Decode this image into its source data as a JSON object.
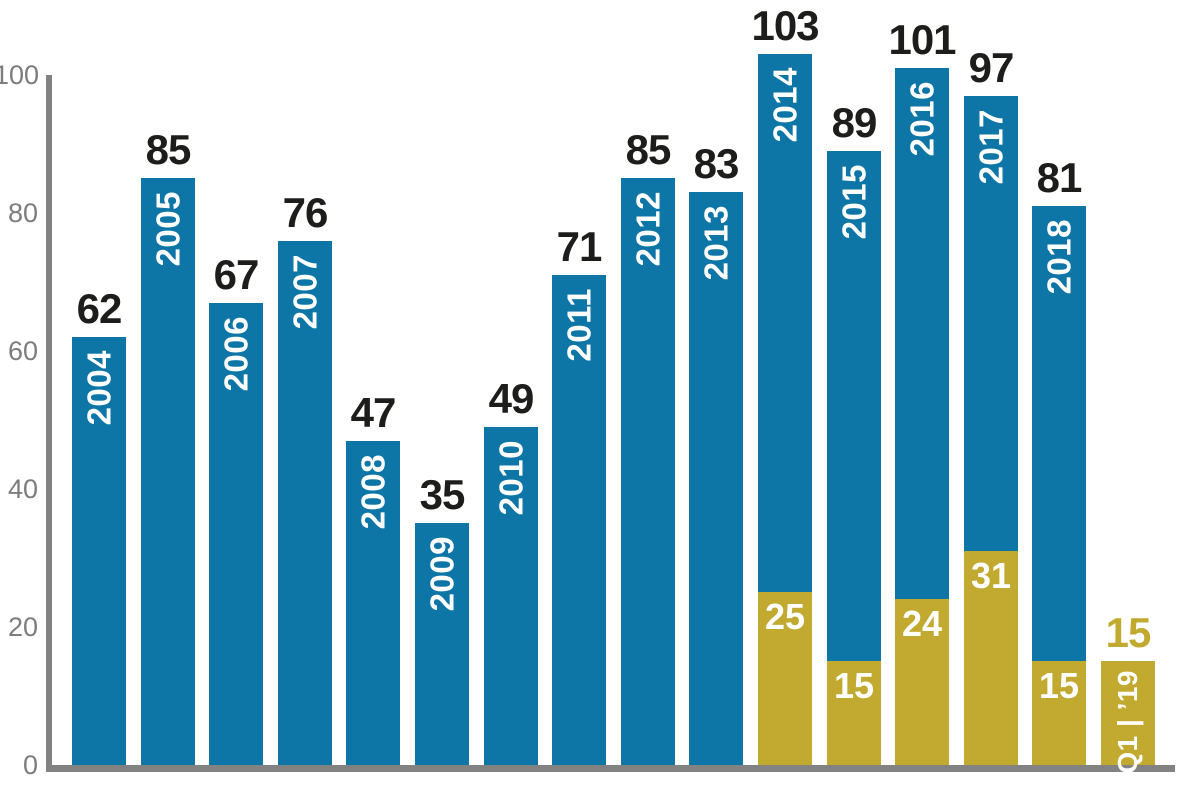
{
  "chart_data": {
    "type": "bar",
    "stacked": true,
    "title": "",
    "xlabel": "",
    "ylabel": "",
    "ylim": [
      0,
      103
    ],
    "y_ticks": [
      0,
      20,
      40,
      60,
      80,
      100
    ],
    "grid": false,
    "legend": false,
    "colors": {
      "blue": "#0e76a7",
      "gold": "#c2a930",
      "axis_gray": "#828282",
      "tick_gray": "#7d7d7d",
      "value_black": "#1d1d1b",
      "inner_label_white": "#ffffff"
    },
    "categories": [
      "2004",
      "2005",
      "2006",
      "2007",
      "2008",
      "2009",
      "2010",
      "2011",
      "2012",
      "2013",
      "2014",
      "2015",
      "2016",
      "2017",
      "2018",
      "Q1 | ’19"
    ],
    "series": [
      {
        "name": "blue segment",
        "color": "#0e76a7",
        "values": [
          62,
          85,
          67,
          76,
          47,
          35,
          49,
          71,
          85,
          83,
          78,
          74,
          77,
          66,
          66,
          0
        ]
      },
      {
        "name": "gold segment",
        "color": "#c2a930",
        "values": [
          0,
          0,
          0,
          0,
          0,
          0,
          0,
          0,
          0,
          0,
          25,
          15,
          24,
          31,
          15,
          15
        ]
      }
    ],
    "totals": [
      62,
      85,
      67,
      76,
      47,
      35,
      49,
      71,
      85,
      83,
      103,
      89,
      101,
      97,
      81,
      15
    ],
    "bars": [
      {
        "year": "2004",
        "total": 62,
        "gold": 0
      },
      {
        "year": "2005",
        "total": 85,
        "gold": 0
      },
      {
        "year": "2006",
        "total": 67,
        "gold": 0
      },
      {
        "year": "2007",
        "total": 76,
        "gold": 0
      },
      {
        "year": "2008",
        "total": 47,
        "gold": 0
      },
      {
        "year": "2009",
        "total": 35,
        "gold": 0
      },
      {
        "year": "2010",
        "total": 49,
        "gold": 0
      },
      {
        "year": "2011",
        "total": 71,
        "gold": 0
      },
      {
        "year": "2012",
        "total": 85,
        "gold": 0
      },
      {
        "year": "2013",
        "total": 83,
        "gold": 0
      },
      {
        "year": "2014",
        "total": 103,
        "gold": 25
      },
      {
        "year": "2015",
        "total": 89,
        "gold": 15
      },
      {
        "year": "2016",
        "total": 101,
        "gold": 24
      },
      {
        "year": "2017",
        "total": 97,
        "gold": 31
      },
      {
        "year": "2018",
        "total": 81,
        "gold": 15
      },
      {
        "year": "Q1 | ’19",
        "total": 15,
        "gold": 15,
        "gold_total_label": true,
        "hide_gold_value": true
      }
    ]
  }
}
